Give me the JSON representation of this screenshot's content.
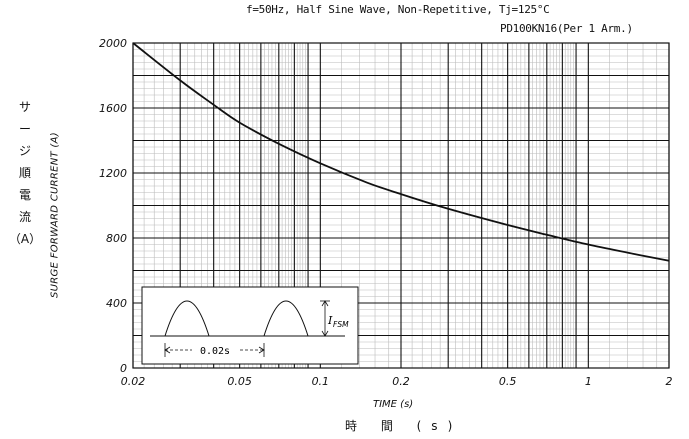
{
  "chart_data": {
    "type": "line",
    "title": "f=50Hz, Half Sine Wave, Non-Repetitive, Tj=125°C",
    "subtitle": "PD100KN16(Per 1 Arm.)",
    "ylabel_jp": "サージ順電流（A）",
    "ylabel_jp_chars": [
      "サ",
      "ー",
      "ジ",
      "順",
      "電",
      "流",
      "（A）"
    ],
    "ylabel": "SURGE FORWARD CURRENT (A)",
    "xlabel": "TIME (s)",
    "xlabel_jp": "時 間 (s)",
    "x_scale": "log",
    "xlim": [
      0.02,
      2
    ],
    "ylim": [
      0,
      2000
    ],
    "x_ticks": [
      0.02,
      0.05,
      0.1,
      0.2,
      0.5,
      1,
      2
    ],
    "x_tick_labels": [
      "0.02",
      "0.05",
      "0.1",
      "0.2",
      "0.5",
      "1",
      "2"
    ],
    "y_ticks": [
      0,
      400,
      800,
      1200,
      1600,
      2000
    ],
    "y_tick_labels": [
      "0",
      "400",
      "800",
      "1200",
      "1600",
      "2000"
    ],
    "grid": true,
    "series": [
      {
        "x": [
          0.02,
          0.03,
          0.04,
          0.05,
          0.07,
          0.1,
          0.15,
          0.2,
          0.3,
          0.5,
          0.7,
          1,
          1.5,
          2
        ],
        "y": [
          2000,
          1770,
          1620,
          1510,
          1380,
          1260,
          1140,
          1070,
          980,
          880,
          820,
          760,
          700,
          660
        ]
      }
    ],
    "inset": {
      "current_label": "I",
      "current_subscript": "FSM",
      "period_label": "0.02s"
    }
  }
}
